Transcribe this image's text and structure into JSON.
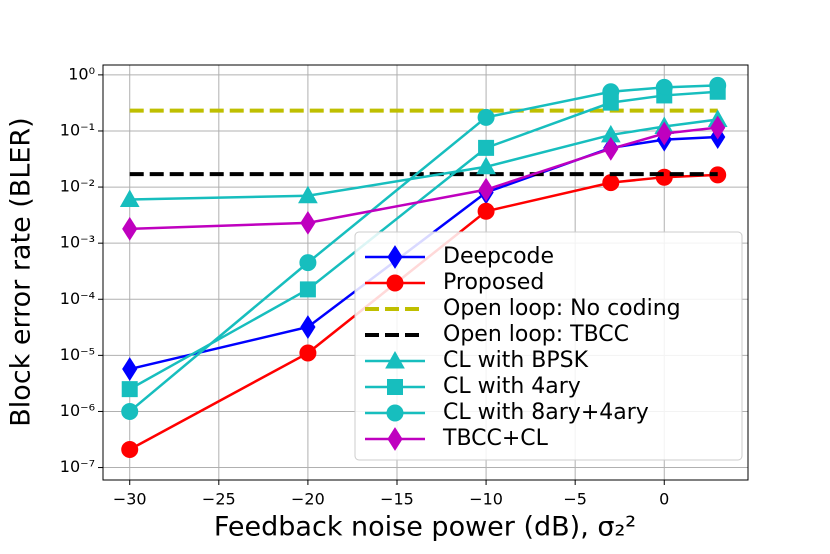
{
  "chart_data": {
    "type": "line",
    "xlabel": "Feedback noise power (dB), σ₂²",
    "ylabel": "Block error rate (BLER)",
    "x": [
      -30,
      -20,
      -10,
      -3,
      0,
      3
    ],
    "xlim": [
      -31.5,
      4.7
    ],
    "xticks": [
      {
        "value": -30,
        "label": "−30"
      },
      {
        "value": -25,
        "label": "−25"
      },
      {
        "value": -20,
        "label": "−20"
      },
      {
        "value": -15,
        "label": "−15"
      },
      {
        "value": -10,
        "label": "−10"
      },
      {
        "value": -5,
        "label": "−5"
      },
      0
    ],
    "ylim": [
      6e-08,
      1.5
    ],
    "ylog": true,
    "yticks": [
      {
        "value": 1e-07,
        "label": "10⁻⁷"
      },
      {
        "value": 1e-06,
        "label": "10⁻⁶"
      },
      {
        "value": 1e-05,
        "label": "10⁻⁵"
      },
      {
        "value": 0.0001,
        "label": "10⁻⁴"
      },
      {
        "value": 0.001,
        "label": "10⁻³"
      },
      {
        "value": 0.01,
        "label": "10⁻²"
      },
      {
        "value": 0.1,
        "label": "10⁻¹"
      },
      {
        "value": 1,
        "label": "10⁰"
      }
    ],
    "grid": true,
    "legend": "lower right",
    "series": [
      {
        "name": "Deepcode",
        "color": "#0000ff",
        "marker": "diamond",
        "values": [
          5.7e-06,
          3.2e-05,
          0.008,
          0.05,
          0.07,
          0.078
        ]
      },
      {
        "name": "Proposed",
        "color": "#ff0000",
        "marker": "circle",
        "values": [
          2.1e-07,
          1.1e-05,
          0.0037,
          0.012,
          0.015,
          0.0165
        ]
      },
      {
        "name": "Open loop: No coding",
        "color": "#bfbf00",
        "marker": "none",
        "dashed": true,
        "values": [
          0.23,
          0.23,
          0.23,
          0.23,
          0.23,
          0.23
        ]
      },
      {
        "name": "Open loop: TBCC",
        "color": "#000000",
        "marker": "none",
        "dashed": true,
        "values": [
          0.017,
          0.017,
          0.017,
          0.017,
          0.017,
          0.017
        ]
      },
      {
        "name": "CL with BPSK",
        "color": "#17bebe",
        "marker": "triangle",
        "values": [
          0.006,
          0.007,
          0.023,
          0.085,
          0.12,
          0.16
        ]
      },
      {
        "name": "CL with 4ary",
        "color": "#17bebe",
        "marker": "square",
        "values": [
          2.5e-06,
          0.00015,
          0.05,
          0.32,
          0.43,
          0.5
        ]
      },
      {
        "name": "CL with 8ary+4ary",
        "color": "#17bebe",
        "marker": "circle",
        "values": [
          1e-06,
          0.00045,
          0.175,
          0.5,
          0.6,
          0.65
        ]
      },
      {
        "name": "TBCC+CL",
        "color": "#bf00bf",
        "marker": "diamond",
        "values": [
          0.0018,
          0.0023,
          0.009,
          0.048,
          0.09,
          0.115
        ]
      }
    ]
  }
}
